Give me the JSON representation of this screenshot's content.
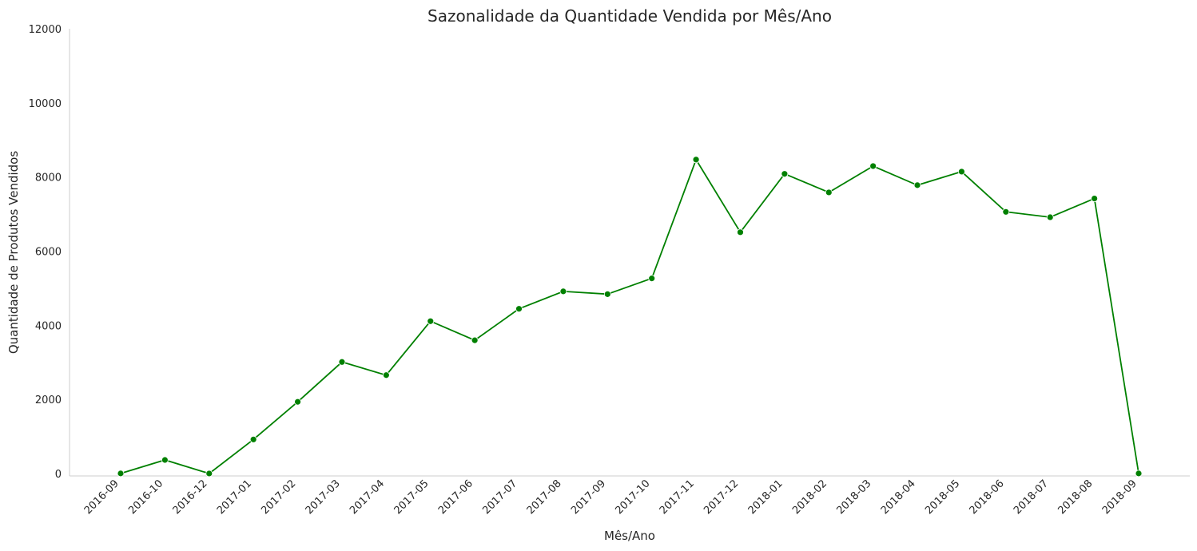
{
  "chart_data": {
    "type": "line",
    "title": "Sazonalidade da Quantidade Vendida por Mês/Ano",
    "xlabel": "Mês/Ano",
    "ylabel": "Quantidade de Produtos Vendidos",
    "ylim": [
      0,
      12000
    ],
    "yticks": [
      "0",
      "2000",
      "4000",
      "6000",
      "8000",
      "10000",
      "12000"
    ],
    "grid": false,
    "color": "#008000",
    "categories": [
      "2016-09",
      "2016-10",
      "2016-12",
      "2017-01",
      "2017-02",
      "2017-03",
      "2017-04",
      "2017-05",
      "2017-06",
      "2017-07",
      "2017-08",
      "2017-09",
      "2017-10",
      "2017-11",
      "2017-12",
      "2018-01",
      "2018-02",
      "2018-03",
      "2018-04",
      "2018-05",
      "2018-06",
      "2018-07",
      "2018-08",
      "2018-09"
    ],
    "series": [
      {
        "values": [
          3,
          366,
          1,
          920,
          1935,
          3010,
          2655,
          4110,
          3595,
          4445,
          4915,
          4840,
          5265,
          8470,
          6510,
          8085,
          7585,
          8295,
          7780,
          8145,
          7060,
          6915,
          7420,
          3
        ]
      }
    ]
  }
}
